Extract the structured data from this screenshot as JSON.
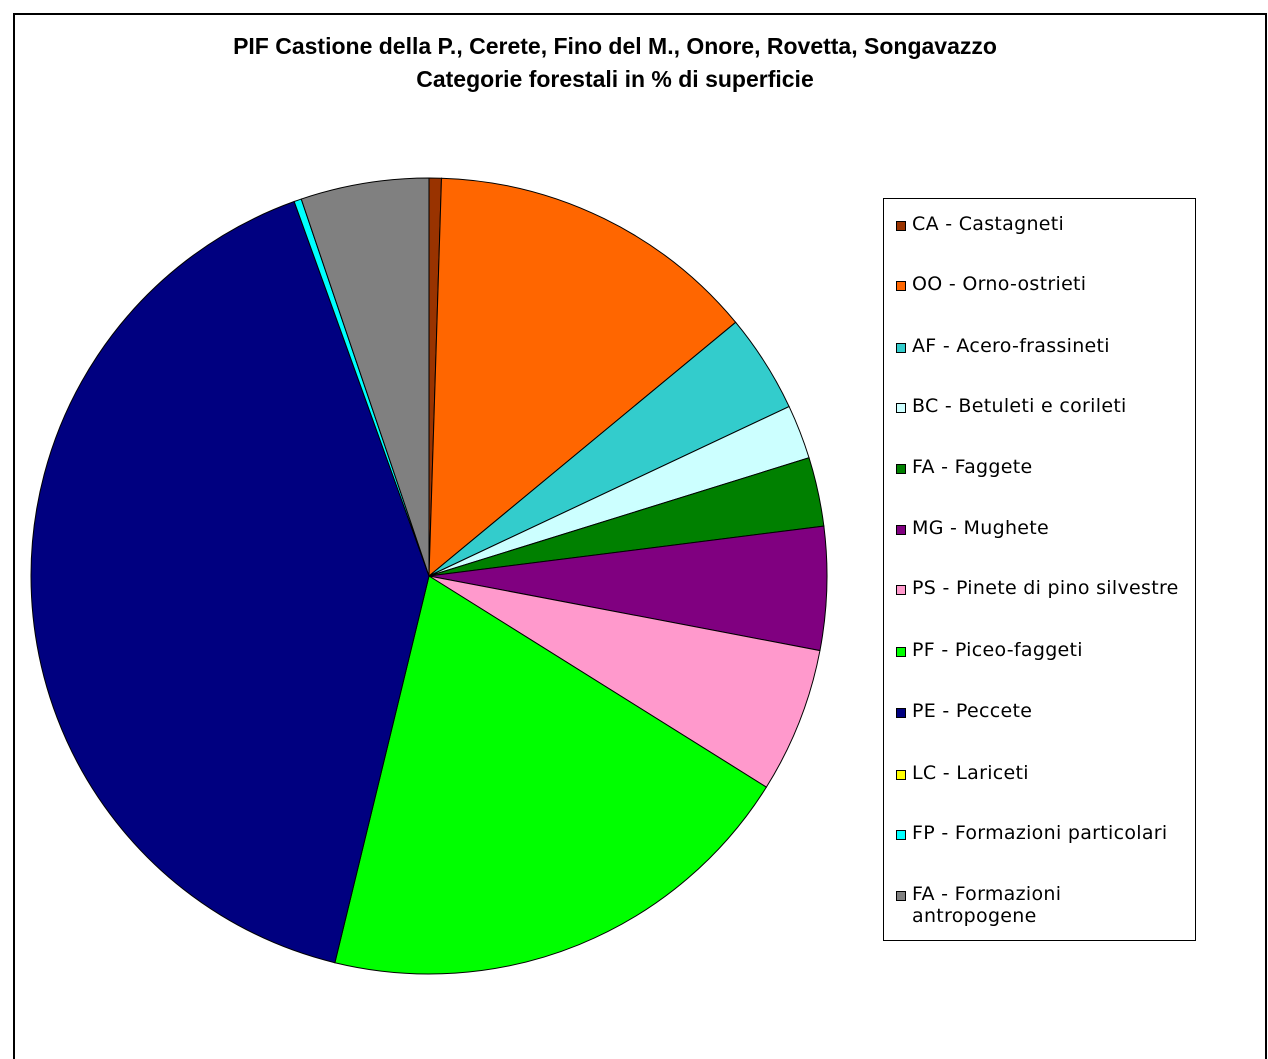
{
  "chart_data": {
    "type": "pie",
    "title": "PIF Castione della P., Cerete, Fino del M., Onore, Rovetta, Songavazzo",
    "subtitle": "Categorie forestali in % di superficie",
    "legend_position": "right",
    "slices": [
      {
        "label": "CA - Castagneti",
        "value": 0.5,
        "color": "#993300"
      },
      {
        "label": "OO - Orno-ostrieti",
        "value": 13.5,
        "color": "#ff6600"
      },
      {
        "label": "AF - Acero-frassineti",
        "value": 4.0,
        "color": "#33cccc"
      },
      {
        "label": "BC - Betuleti e corileti",
        "value": 2.2,
        "color": "#ccffff"
      },
      {
        "label": "FA - Faggete",
        "value": 2.8,
        "color": "#008000"
      },
      {
        "label": "MG - Mughete",
        "value": 5.0,
        "color": "#800080"
      },
      {
        "label": "PS - Pinete di pino silvestre",
        "value": 5.9,
        "color": "#ff99cc"
      },
      {
        "label": "PF - Piceo-faggeti",
        "value": 19.9,
        "color": "#00ff00"
      },
      {
        "label": "PE - Peccete",
        "value": 40.7,
        "color": "#000080"
      },
      {
        "label": "LC - Lariceti",
        "value": 0.0,
        "color": "#ffff00"
      },
      {
        "label": "FP - Formazioni particolari",
        "value": 0.3,
        "color": "#00ffff"
      },
      {
        "label": "FA - Formazioni antropogene",
        "value": 5.2,
        "color": "#808080"
      }
    ]
  }
}
